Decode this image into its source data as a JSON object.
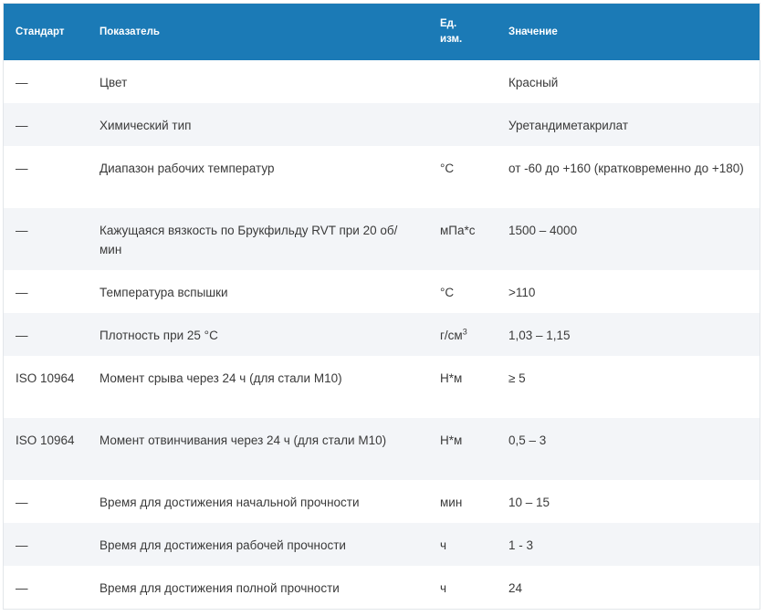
{
  "headers": {
    "standard": "Стандарт",
    "parameter": "Показатель",
    "unit_line1": "Ед.",
    "unit_line2": "изм.",
    "value": "Значение"
  },
  "rows": [
    {
      "standard": "—",
      "parameter": "Цвет",
      "unit": "",
      "value": "Красный"
    },
    {
      "standard": "—",
      "parameter": "Химический тип",
      "unit": "",
      "value": "Уретандиметакрилат"
    },
    {
      "standard": "—",
      "parameter": "Диапазон рабочих температур",
      "unit": "°С",
      "value": "от -60 до +160 (кратковременно до +180)"
    },
    {
      "standard": "—",
      "parameter": "Кажущаяся вязкость по Брукфильду RVT при 20 об/мин",
      "unit": "мПа*с",
      "value": "1500 – 4000"
    },
    {
      "standard": "—",
      "parameter": "Температура вспышки",
      "unit": "°С",
      "value": ">110"
    },
    {
      "standard": "—",
      "parameter": "Плотность при 25 °С",
      "unit": "г/см",
      "unit_sup": "3",
      "value": "1,03 – 1,15"
    },
    {
      "standard": "ISO 10964",
      "parameter": "Момент срыва через 24 ч (для стали М10)",
      "unit": "Н*м",
      "value": "≥ 5"
    },
    {
      "standard": "ISO 10964",
      "parameter": "Момент отвинчивания через 24 ч (для стали М10)",
      "unit": "Н*м",
      "value": "0,5 – 3"
    },
    {
      "standard": "—",
      "parameter": "Время для достижения начальной прочности",
      "unit": "мин",
      "value": "10 – 15"
    },
    {
      "standard": "—",
      "parameter": "Время для достижения рабочей прочности",
      "unit": "ч",
      "value": "1 - 3"
    },
    {
      "standard": "—",
      "parameter": "Время для достижения полной прочности",
      "unit": "ч",
      "value": "24"
    }
  ]
}
